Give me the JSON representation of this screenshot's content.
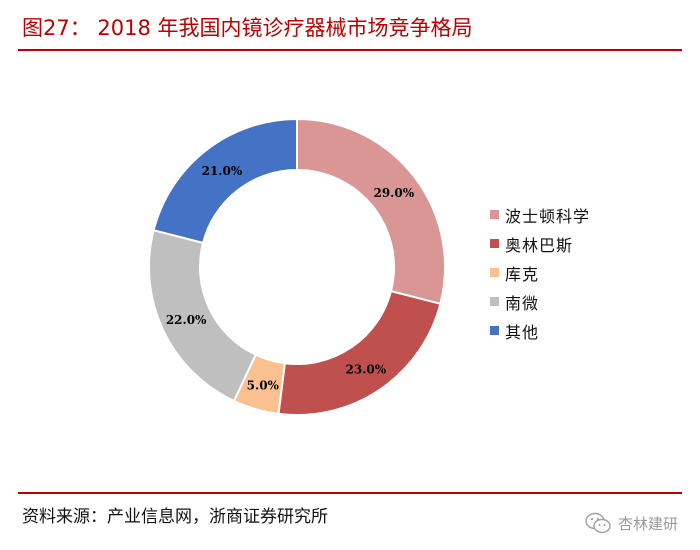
{
  "title": "图27： 2018 年我国内镜诊疗器械市场竞争格局",
  "source": "资料来源：产业信息网，浙商证券研究所",
  "watermark": "杏林建研",
  "colors": {
    "accent": "#c00000"
  },
  "chart_data": {
    "type": "pie",
    "variant": "donut",
    "labels": [
      "波士顿科学",
      "奥林巴斯",
      "库克",
      "南微",
      "其他"
    ],
    "values": [
      29.0,
      23.0,
      5.0,
      22.0,
      21.0
    ],
    "value_labels": [
      "29.0%",
      "23.0%",
      "5.0%",
      "22.0%",
      "21.0%"
    ],
    "colors": [
      "#d99694",
      "#c0504d",
      "#fac090",
      "#bfbfbf",
      "#4472c4"
    ],
    "legend_position": "right",
    "start_angle": "12 o'clock",
    "direction": "clockwise"
  }
}
